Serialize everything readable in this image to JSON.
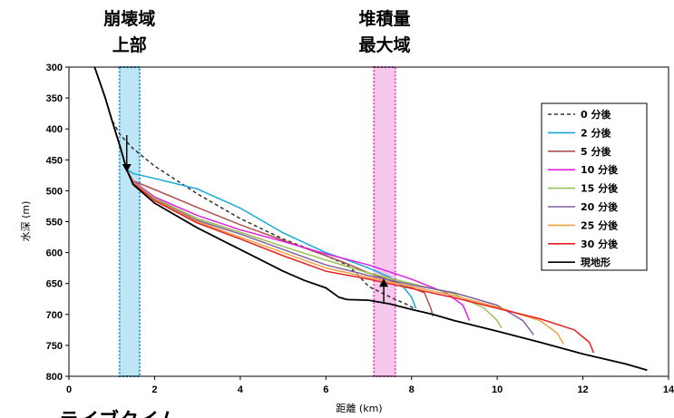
{
  "chart_data": {
    "type": "line",
    "xlabel": "距離 (km)",
    "ylabel": "水深 (m)",
    "xlim": [
      0,
      14
    ],
    "ylim": [
      300,
      800
    ],
    "y_inverted": true,
    "xticks": [
      "0",
      "2",
      "4",
      "6",
      "8",
      "10",
      "12",
      "14"
    ],
    "yticks": [
      "300",
      "350",
      "400",
      "450",
      "500",
      "550",
      "600",
      "650",
      "700",
      "750",
      "800"
    ],
    "legend_position": "right",
    "regions": [
      {
        "label_line1": "崩壊域",
        "label_line2": "上部",
        "x_range": [
          1.18,
          1.65
        ],
        "fill": "#bfe6f5",
        "border": "#1a9ad6"
      },
      {
        "label_line1": "堆積量",
        "label_line2": "最大域",
        "x_range": [
          7.12,
          7.62
        ],
        "fill": "#f8c8ec",
        "border": "#e64fc8"
      }
    ],
    "arrows": [
      {
        "x": 1.35,
        "from_y": 410,
        "to_y": 470
      },
      {
        "x": 7.35,
        "from_y": 683,
        "to_y": 642
      }
    ],
    "bottom_text": "ライブクイム",
    "series": [
      {
        "name": "0 分後",
        "color": "#333333",
        "dashed": true,
        "points": [
          [
            0.6,
            300
          ],
          [
            0.85,
            350
          ],
          [
            1.0,
            385
          ],
          [
            1.2,
            410
          ],
          [
            1.5,
            432
          ],
          [
            2.0,
            460
          ],
          [
            3.0,
            505
          ],
          [
            4.0,
            545
          ],
          [
            5.0,
            578
          ],
          [
            6.0,
            605
          ],
          [
            6.5,
            620
          ],
          [
            6.8,
            640
          ],
          [
            7.0,
            655
          ],
          [
            7.3,
            665
          ],
          [
            7.6,
            675
          ],
          [
            7.9,
            684
          ],
          [
            8.05,
            690
          ]
        ]
      },
      {
        "name": "2 分後",
        "color": "#18a8d6",
        "points": [
          [
            0.6,
            300
          ],
          [
            0.85,
            350
          ],
          [
            1.0,
            385
          ],
          [
            1.2,
            430
          ],
          [
            1.35,
            465
          ],
          [
            1.5,
            472
          ],
          [
            2.0,
            480
          ],
          [
            3.0,
            497
          ],
          [
            4.0,
            528
          ],
          [
            5.0,
            568
          ],
          [
            6.0,
            600
          ],
          [
            6.5,
            612
          ],
          [
            7.0,
            625
          ],
          [
            7.5,
            640
          ],
          [
            7.8,
            655
          ],
          [
            8.0,
            672
          ],
          [
            8.1,
            690
          ]
        ]
      },
      {
        "name": "5 分後",
        "color": "#b05050",
        "points": [
          [
            0.6,
            300
          ],
          [
            0.85,
            350
          ],
          [
            1.0,
            385
          ],
          [
            1.2,
            430
          ],
          [
            1.35,
            466
          ],
          [
            1.5,
            484
          ],
          [
            2.0,
            498
          ],
          [
            3.0,
            527
          ],
          [
            4.0,
            555
          ],
          [
            5.0,
            580
          ],
          [
            6.0,
            605
          ],
          [
            6.5,
            618
          ],
          [
            7.0,
            633
          ],
          [
            7.5,
            645
          ],
          [
            8.0,
            657
          ],
          [
            8.3,
            665
          ],
          [
            8.45,
            690
          ],
          [
            8.5,
            703
          ]
        ]
      },
      {
        "name": "10 分後",
        "color": "#e020e0",
        "points": [
          [
            0.6,
            300
          ],
          [
            0.85,
            350
          ],
          [
            1.0,
            385
          ],
          [
            1.2,
            430
          ],
          [
            1.35,
            466
          ],
          [
            1.5,
            484
          ],
          [
            2.0,
            510
          ],
          [
            3.0,
            540
          ],
          [
            4.0,
            563
          ],
          [
            5.0,
            582
          ],
          [
            6.0,
            602
          ],
          [
            7.0,
            620
          ],
          [
            8.0,
            643
          ],
          [
            8.8,
            665
          ],
          [
            9.2,
            685
          ],
          [
            9.35,
            710
          ]
        ]
      },
      {
        "name": "15 分後",
        "color": "#9ac050",
        "points": [
          [
            0.6,
            300
          ],
          [
            0.85,
            350
          ],
          [
            1.0,
            385
          ],
          [
            1.2,
            430
          ],
          [
            1.35,
            466
          ],
          [
            1.5,
            485
          ],
          [
            2.0,
            512
          ],
          [
            3.0,
            545
          ],
          [
            4.0,
            567
          ],
          [
            5.0,
            590
          ],
          [
            6.0,
            612
          ],
          [
            7.0,
            633
          ],
          [
            8.0,
            650
          ],
          [
            9.0,
            667
          ],
          [
            9.7,
            690
          ],
          [
            10.0,
            710
          ],
          [
            10.1,
            722
          ]
        ]
      },
      {
        "name": "20 分後",
        "color": "#8060a0",
        "points": [
          [
            0.6,
            300
          ],
          [
            0.85,
            350
          ],
          [
            1.0,
            385
          ],
          [
            1.2,
            430
          ],
          [
            1.35,
            466
          ],
          [
            1.5,
            486
          ],
          [
            2.0,
            514
          ],
          [
            3.0,
            548
          ],
          [
            4.0,
            570
          ],
          [
            5.0,
            595
          ],
          [
            6.0,
            620
          ],
          [
            7.0,
            637
          ],
          [
            8.0,
            652
          ],
          [
            9.0,
            665
          ],
          [
            10.0,
            685
          ],
          [
            10.6,
            710
          ],
          [
            10.85,
            733
          ]
        ]
      },
      {
        "name": "25 分後",
        "color": "#f0a040",
        "points": [
          [
            0.6,
            300
          ],
          [
            0.85,
            350
          ],
          [
            1.0,
            385
          ],
          [
            1.2,
            430
          ],
          [
            1.35,
            466
          ],
          [
            1.5,
            487
          ],
          [
            2.0,
            515
          ],
          [
            3.0,
            550
          ],
          [
            4.0,
            575
          ],
          [
            5.0,
            600
          ],
          [
            6.0,
            625
          ],
          [
            7.0,
            640
          ],
          [
            8.0,
            655
          ],
          [
            9.0,
            670
          ],
          [
            10.0,
            688
          ],
          [
            11.0,
            710
          ],
          [
            11.4,
            730
          ],
          [
            11.55,
            748
          ]
        ]
      },
      {
        "name": "30 分後",
        "color": "#e62020",
        "points": [
          [
            0.6,
            300
          ],
          [
            0.85,
            350
          ],
          [
            1.0,
            385
          ],
          [
            1.2,
            430
          ],
          [
            1.35,
            466
          ],
          [
            1.5,
            488
          ],
          [
            2.0,
            516
          ],
          [
            3.0,
            552
          ],
          [
            4.0,
            578
          ],
          [
            5.0,
            605
          ],
          [
            6.0,
            630
          ],
          [
            7.0,
            643
          ],
          [
            8.0,
            658
          ],
          [
            9.0,
            673
          ],
          [
            10.0,
            690
          ],
          [
            11.0,
            707
          ],
          [
            11.8,
            725
          ],
          [
            12.15,
            745
          ],
          [
            12.25,
            762
          ]
        ]
      },
      {
        "name": "現地形",
        "color": "#000000",
        "points": [
          [
            0.6,
            300
          ],
          [
            0.85,
            350
          ],
          [
            1.0,
            385
          ],
          [
            1.2,
            430
          ],
          [
            1.35,
            466
          ],
          [
            1.5,
            490
          ],
          [
            2.0,
            520
          ],
          [
            3.0,
            560
          ],
          [
            4.0,
            595
          ],
          [
            5.0,
            630
          ],
          [
            5.5,
            645
          ],
          [
            6.0,
            657
          ],
          [
            6.3,
            672
          ],
          [
            6.5,
            676
          ],
          [
            7.0,
            677
          ],
          [
            7.5,
            683
          ],
          [
            8.0,
            692
          ],
          [
            8.5,
            700
          ],
          [
            9.0,
            710
          ],
          [
            10.0,
            727
          ],
          [
            11.0,
            745
          ],
          [
            12.0,
            764
          ],
          [
            12.5,
            772
          ],
          [
            13.0,
            780
          ],
          [
            13.5,
            790
          ]
        ]
      }
    ]
  }
}
